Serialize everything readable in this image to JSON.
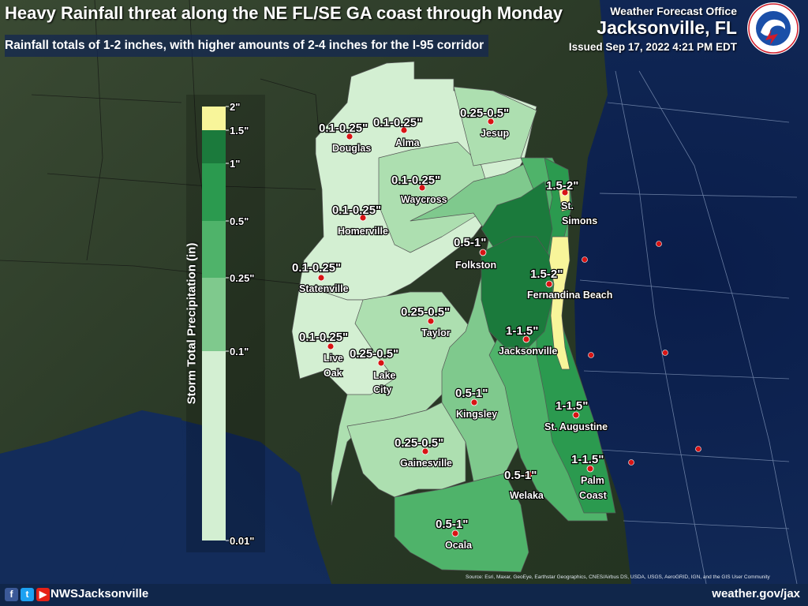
{
  "header": {
    "title": "Heavy Rainfall threat along the NE FL/SE GA coast through Monday",
    "subtitle": "Rainfall totals of 1-2 inches, with higher amounts of 2-4 inches for the I-95 corridor",
    "office_line1": "Weather Forecast Office",
    "office_line2": "Jacksonville, FL",
    "issued": "Issued Sep 17, 2022 4:21 PM EDT"
  },
  "legend": {
    "title": "Storm Total Precipitation (in)",
    "ticks": [
      "2\"",
      "1.5\"",
      "1\"",
      "0.5\"",
      "0.25\"",
      "0.1\"",
      "0.01\""
    ],
    "bins": [
      {
        "color": "#f8f59a"
      },
      {
        "color": "#1b7a3c"
      },
      {
        "color": "#2b9a4f"
      },
      {
        "color": "#4fb36a"
      },
      {
        "color": "#7fc98d"
      },
      {
        "color": "#addfb0"
      },
      {
        "color": "#d3efd2"
      }
    ]
  },
  "locations": [
    {
      "id": "douglas",
      "amount": "0.1-0.25\"",
      "name": [
        "Douglas"
      ]
    },
    {
      "id": "alma",
      "amount": "0.1-0.25\"",
      "name": [
        "Alma"
      ]
    },
    {
      "id": "jesup",
      "amount": "0.25-0.5\"",
      "name": [
        "Jesup"
      ]
    },
    {
      "id": "waycross",
      "amount": "0.1-0.25\"",
      "name": [
        "Waycross"
      ]
    },
    {
      "id": "st-simons",
      "amount": "1.5-2\"",
      "name": [
        "St.",
        "Simons"
      ]
    },
    {
      "id": "homerville",
      "amount": "0.1-0.25\"",
      "name": [
        "Homerville"
      ]
    },
    {
      "id": "folkston",
      "amount": "0.5-1\"",
      "name": [
        "Folkston"
      ]
    },
    {
      "id": "statenville",
      "amount": "0.1-0.25\"",
      "name": [
        "Statenville"
      ]
    },
    {
      "id": "fernandina-beach",
      "amount": "1.5-2\"",
      "name": [
        "Fernandina Beach"
      ]
    },
    {
      "id": "taylor",
      "amount": "0.25-0.5\"",
      "name": [
        "Taylor"
      ]
    },
    {
      "id": "live-oak",
      "amount": "0.1-0.25\"",
      "name": [
        "Live",
        "Oak"
      ]
    },
    {
      "id": "lake-city",
      "amount": "0.25-0.5\"",
      "name": [
        "Lake",
        "City"
      ]
    },
    {
      "id": "jacksonville",
      "amount": "1-1.5\"",
      "name": [
        "Jacksonville"
      ]
    },
    {
      "id": "kingsley",
      "amount": "0.5-1\"",
      "name": [
        "Kingsley"
      ]
    },
    {
      "id": "st-augustine",
      "amount": "1-1.5\"",
      "name": [
        "St. Augustine"
      ]
    },
    {
      "id": "gainesville",
      "amount": "0.25-0.5\"",
      "name": [
        "Gainesville"
      ]
    },
    {
      "id": "palm-coast",
      "amount": "1-1.5\"",
      "name": [
        "Palm",
        "Coast"
      ]
    },
    {
      "id": "welaka",
      "amount": "0.5-1\"",
      "name": [
        "Welaka"
      ]
    },
    {
      "id": "ocala",
      "amount": "0.5-1\"",
      "name": [
        "Ocala"
      ]
    }
  ],
  "source_credit": "Source: Esri, Maxar, GeoEye, Earthstar Geographics, CNES/Airbus DS, USDA, USGS, AeroGRID, IGN, and the GIS User Community",
  "footer": {
    "social_icons": [
      "facebook-icon",
      "twitter-icon",
      "youtube-icon"
    ],
    "handle": "NWSJacksonville",
    "website": "weather.gov/jax"
  },
  "colors": {
    "ocean": "#0d2350",
    "land": "#2a3a25",
    "marker": "#d81414",
    "footer": "#10264a"
  }
}
